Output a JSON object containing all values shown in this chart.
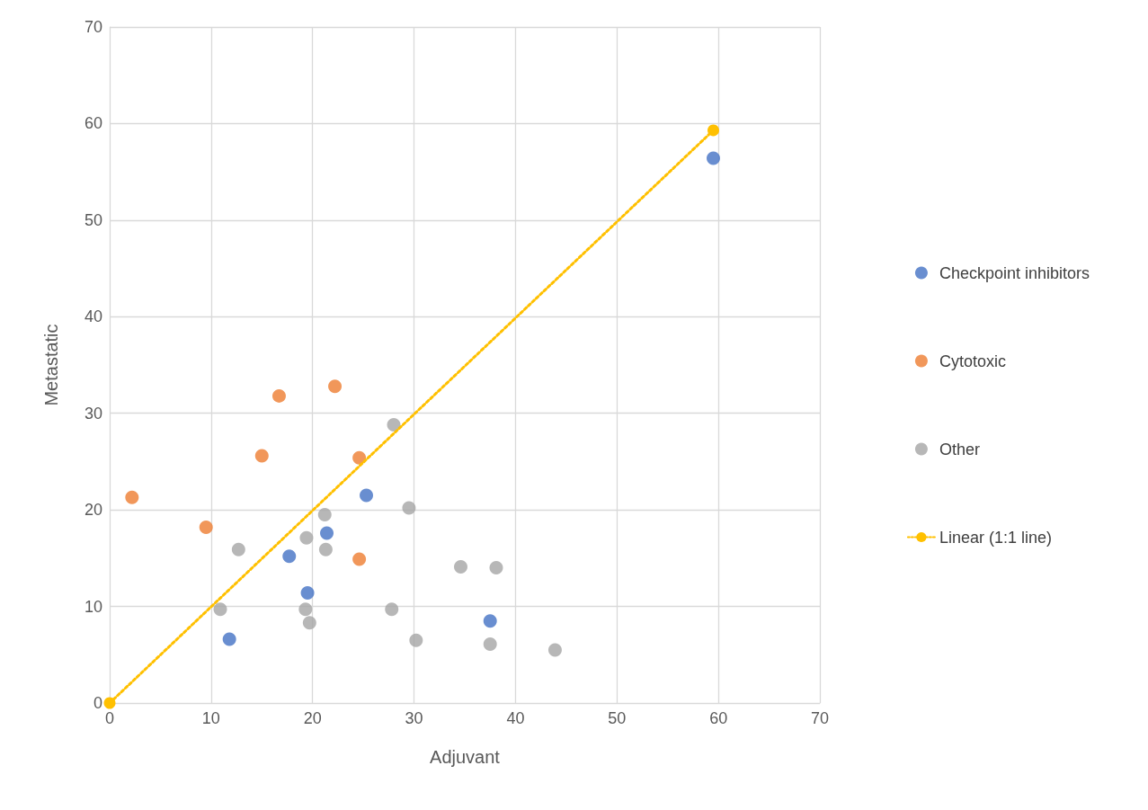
{
  "chart_data": {
    "type": "scatter",
    "xlabel": "Adjuvant",
    "ylabel": "Metastatic",
    "xlim": [
      0,
      70
    ],
    "xticks": [
      0,
      10,
      20,
      30,
      40,
      50,
      60,
      70
    ],
    "ylim": [
      0,
      70
    ],
    "yticks": [
      0,
      10,
      20,
      30,
      40,
      50,
      60,
      70
    ],
    "grid": true,
    "legend": "right",
    "marker": "circle",
    "series": [
      {
        "name": "Checkpoint inhibitors",
        "color": "#4472c4",
        "x": [
          11.8,
          17.7,
          19.5,
          21.4,
          25.3,
          37.5,
          59.5
        ],
        "values": [
          6.6,
          15.2,
          11.4,
          17.6,
          21.5,
          8.5,
          56.4
        ]
      },
      {
        "name": "Cytotoxic",
        "color": "#ed7d31",
        "x": [
          2.2,
          9.5,
          15.0,
          16.7,
          22.2,
          24.6,
          24.6
        ],
        "values": [
          21.3,
          18.2,
          25.6,
          31.8,
          32.8,
          25.4,
          14.9
        ]
      },
      {
        "name": "Other",
        "color": "#a5a5a5",
        "x": [
          10.9,
          12.7,
          19.4,
          19.3,
          19.7,
          21.2,
          21.3,
          27.8,
          28.0,
          29.5,
          30.2,
          34.6,
          37.5,
          38.1,
          43.9
        ],
        "values": [
          9.7,
          15.9,
          17.1,
          9.7,
          8.3,
          19.5,
          15.9,
          9.7,
          28.8,
          20.2,
          6.5,
          14.1,
          6.1,
          14.0,
          5.5
        ]
      },
      {
        "name": "Linear (1:1 line)",
        "type": "line",
        "line_style": "dotted",
        "color": "#ffc000",
        "x": [
          0,
          59.5
        ],
        "values": [
          0,
          59.3
        ]
      }
    ]
  }
}
